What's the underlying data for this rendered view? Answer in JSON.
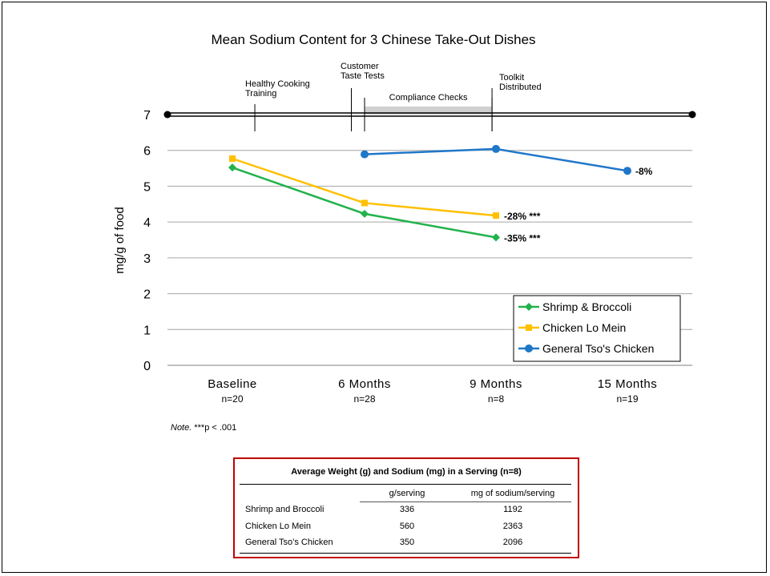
{
  "chart_data": {
    "type": "line",
    "title": "Mean Sodium Content for 3 Chinese Take-Out Dishes",
    "ylabel": "mg/g of food",
    "xlabel": "",
    "ylim": [
      0,
      7
    ],
    "yticks": [
      0,
      1,
      2,
      3,
      4,
      5,
      6,
      7
    ],
    "grid": true,
    "legend_position": "bottom-right",
    "categories": [
      {
        "label": "Baseline",
        "n": "n=20"
      },
      {
        "label": "6 Months",
        "n": "n=28"
      },
      {
        "label": "9 Months",
        "n": "n=8"
      },
      {
        "label": "15 Months",
        "n": "n=19"
      }
    ],
    "series": [
      {
        "name": "Shrimp & Broccoli",
        "color": "#22b24c",
        "marker": "diamond",
        "values": [
          5.52,
          4.23,
          3.57,
          null
        ],
        "end_label": "-35% ***"
      },
      {
        "name": "Chicken Lo Mein",
        "color": "#ffc000",
        "marker": "square",
        "values": [
          5.77,
          4.53,
          4.18,
          null
        ],
        "end_label": "-28% ***"
      },
      {
        "name": "General Tso's Chicken",
        "color": "#1f77c8",
        "marker": "circle",
        "values": [
          null,
          5.89,
          6.04,
          5.43
        ],
        "end_label": "-8%"
      }
    ],
    "timeline": {
      "events": [
        {
          "label_lines": [
            "Healthy Cooking",
            "Training"
          ],
          "x": 0.17
        },
        {
          "label_lines": [
            "Customer",
            "Taste Tests"
          ],
          "x": 0.9
        },
        {
          "label_lines": [
            "Toolkit",
            "Distributed"
          ],
          "x": 1.97
        }
      ],
      "compliance": {
        "label": "Compliance Checks",
        "x_start": 1.0,
        "x_end": 1.97
      }
    }
  },
  "note": {
    "prefix": "Note.",
    "text": " ***p < .001"
  },
  "table": {
    "title": "Average Weight (g) and Sodium (mg) in a Serving (n=8)",
    "columns": [
      "g/serving",
      "mg of sodium/serving"
    ],
    "rows": [
      {
        "name": "Shrimp and Broccoli",
        "g": "336",
        "mg": "1192"
      },
      {
        "name": "Chicken Lo Mein",
        "g": "560",
        "mg": "2363"
      },
      {
        "name": "General Tso’s Chicken",
        "g": "350",
        "mg": "2096"
      }
    ]
  }
}
